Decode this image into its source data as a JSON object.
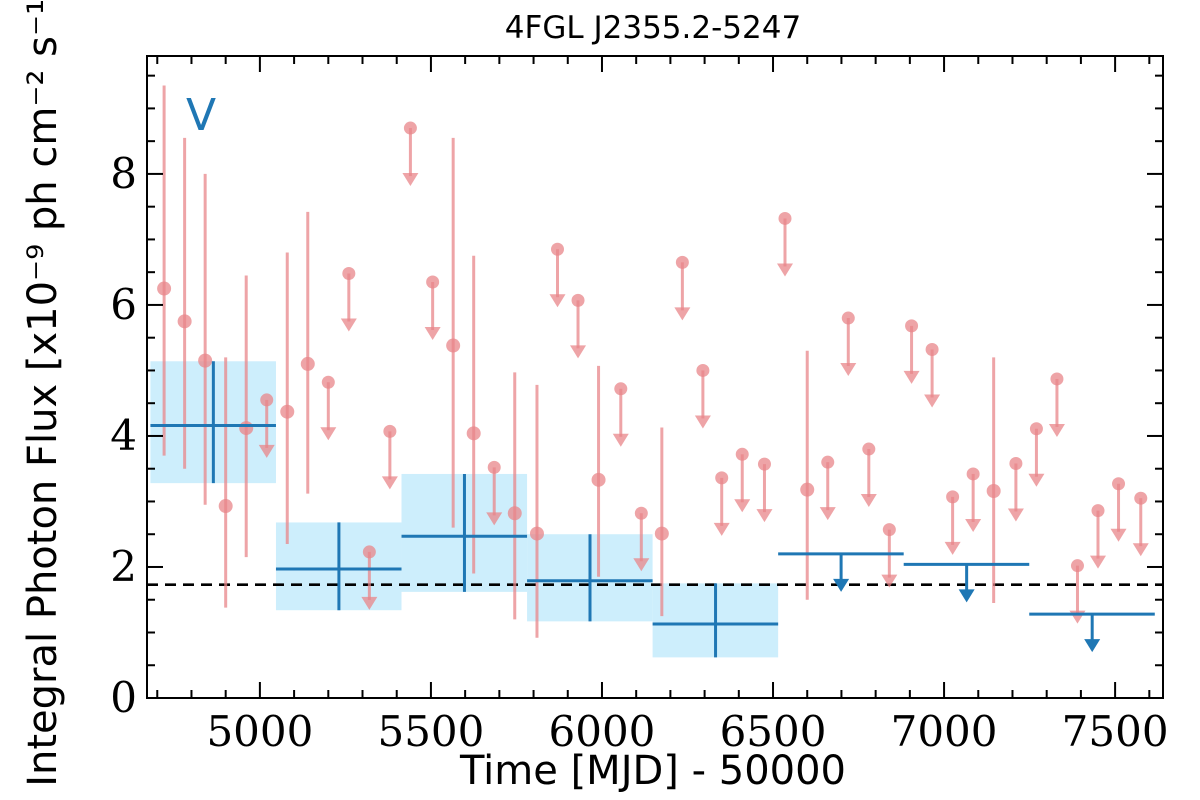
{
  "chart_data": {
    "type": "scatter",
    "title": "4FGL J2355.2-5247",
    "xlabel": "Time [MJD] - 50000",
    "ylabel": "Integral Photon Flux [x10⁻⁹ ph cm⁻² s⁻¹]",
    "xlim": [
      4670,
      7640
    ],
    "ylim": [
      0,
      9.8
    ],
    "xticks": [
      5000,
      5500,
      6000,
      6500,
      7000,
      7500
    ],
    "yticks": [
      0,
      2,
      4,
      6,
      8
    ],
    "grid": false,
    "annotation": "V",
    "colors": {
      "fine": "#e8868a",
      "coarse": "#1f77b4",
      "band": "#cdeefc",
      "mean": "#000000"
    },
    "mean_flux": 1.73,
    "fine_bins": {
      "detections": [
        {
          "x": 4720,
          "y": 6.25,
          "lo": 3.7,
          "hi": 9.35
        },
        {
          "x": 4780,
          "y": 5.75,
          "lo": 3.5,
          "hi": 8.55
        },
        {
          "x": 4840,
          "y": 5.15,
          "lo": 2.95,
          "hi": 8.0
        },
        {
          "x": 4900,
          "y": 2.93,
          "lo": 1.38,
          "hi": 5.2
        },
        {
          "x": 4960,
          "y": 4.12,
          "lo": 2.15,
          "hi": 6.45
        },
        {
          "x": 5080,
          "y": 4.37,
          "lo": 2.35,
          "hi": 6.8
        },
        {
          "x": 5140,
          "y": 5.1,
          "lo": 3.12,
          "hi": 7.42
        },
        {
          "x": 5565,
          "y": 5.38,
          "lo": 2.6,
          "hi": 8.55
        },
        {
          "x": 5625,
          "y": 4.04,
          "lo": 1.9,
          "hi": 6.75
        },
        {
          "x": 5745,
          "y": 2.82,
          "lo": 1.2,
          "hi": 4.97
        },
        {
          "x": 5810,
          "y": 2.51,
          "lo": 0.92,
          "hi": 4.78
        },
        {
          "x": 5990,
          "y": 3.33,
          "lo": 1.85,
          "hi": 5.07
        },
        {
          "x": 6175,
          "y": 2.51,
          "lo": 1.25,
          "hi": 4.13
        },
        {
          "x": 6600,
          "y": 3.18,
          "lo": 1.5,
          "hi": 5.3
        },
        {
          "x": 7145,
          "y": 3.16,
          "lo": 1.45,
          "hi": 5.2
        }
      ],
      "upper_limits": [
        {
          "x": 5020,
          "y": 4.55
        },
        {
          "x": 5200,
          "y": 4.82
        },
        {
          "x": 5260,
          "y": 6.48
        },
        {
          "x": 5320,
          "y": 2.23
        },
        {
          "x": 5380,
          "y": 4.07
        },
        {
          "x": 5440,
          "y": 8.7
        },
        {
          "x": 5505,
          "y": 6.35
        },
        {
          "x": 5685,
          "y": 3.52
        },
        {
          "x": 5870,
          "y": 6.85
        },
        {
          "x": 5930,
          "y": 6.07
        },
        {
          "x": 6055,
          "y": 4.72
        },
        {
          "x": 6115,
          "y": 2.82
        },
        {
          "x": 6235,
          "y": 6.65
        },
        {
          "x": 6295,
          "y": 5.0
        },
        {
          "x": 6350,
          "y": 3.36
        },
        {
          "x": 6410,
          "y": 3.72
        },
        {
          "x": 6475,
          "y": 3.57
        },
        {
          "x": 6535,
          "y": 7.32
        },
        {
          "x": 6660,
          "y": 3.6
        },
        {
          "x": 6720,
          "y": 5.8
        },
        {
          "x": 6780,
          "y": 3.8
        },
        {
          "x": 6840,
          "y": 2.57
        },
        {
          "x": 6905,
          "y": 5.68
        },
        {
          "x": 6965,
          "y": 5.32
        },
        {
          "x": 7025,
          "y": 3.07
        },
        {
          "x": 7085,
          "y": 3.42
        },
        {
          "x": 7210,
          "y": 3.58
        },
        {
          "x": 7270,
          "y": 4.11
        },
        {
          "x": 7330,
          "y": 4.87
        },
        {
          "x": 7390,
          "y": 2.02
        },
        {
          "x": 7450,
          "y": 2.86
        },
        {
          "x": 7510,
          "y": 3.27
        },
        {
          "x": 7575,
          "y": 3.05
        }
      ]
    },
    "coarse_bins": {
      "detections": [
        {
          "x": 4864,
          "xlo": 4680,
          "xhi": 5047,
          "y": 4.16,
          "lo": 3.28,
          "hi": 5.14
        },
        {
          "x": 5231,
          "xlo": 5047,
          "xhi": 5414,
          "y": 1.97,
          "lo": 1.34,
          "hi": 2.68
        },
        {
          "x": 5598,
          "xlo": 5414,
          "xhi": 5781,
          "y": 2.47,
          "lo": 1.62,
          "hi": 3.42
        },
        {
          "x": 5965,
          "xlo": 5781,
          "xhi": 6148,
          "y": 1.79,
          "lo": 1.17,
          "hi": 2.5
        },
        {
          "x": 6332,
          "xlo": 6148,
          "xhi": 6515,
          "y": 1.13,
          "lo": 0.62,
          "hi": 1.75
        }
      ],
      "upper_limits": [
        {
          "x": 6699,
          "xlo": 6515,
          "xhi": 6882,
          "y": 2.2
        },
        {
          "x": 7066,
          "xlo": 6882,
          "xhi": 7249,
          "y": 2.04
        },
        {
          "x": 7433,
          "xlo": 7249,
          "xhi": 7616,
          "y": 1.28
        }
      ]
    }
  }
}
